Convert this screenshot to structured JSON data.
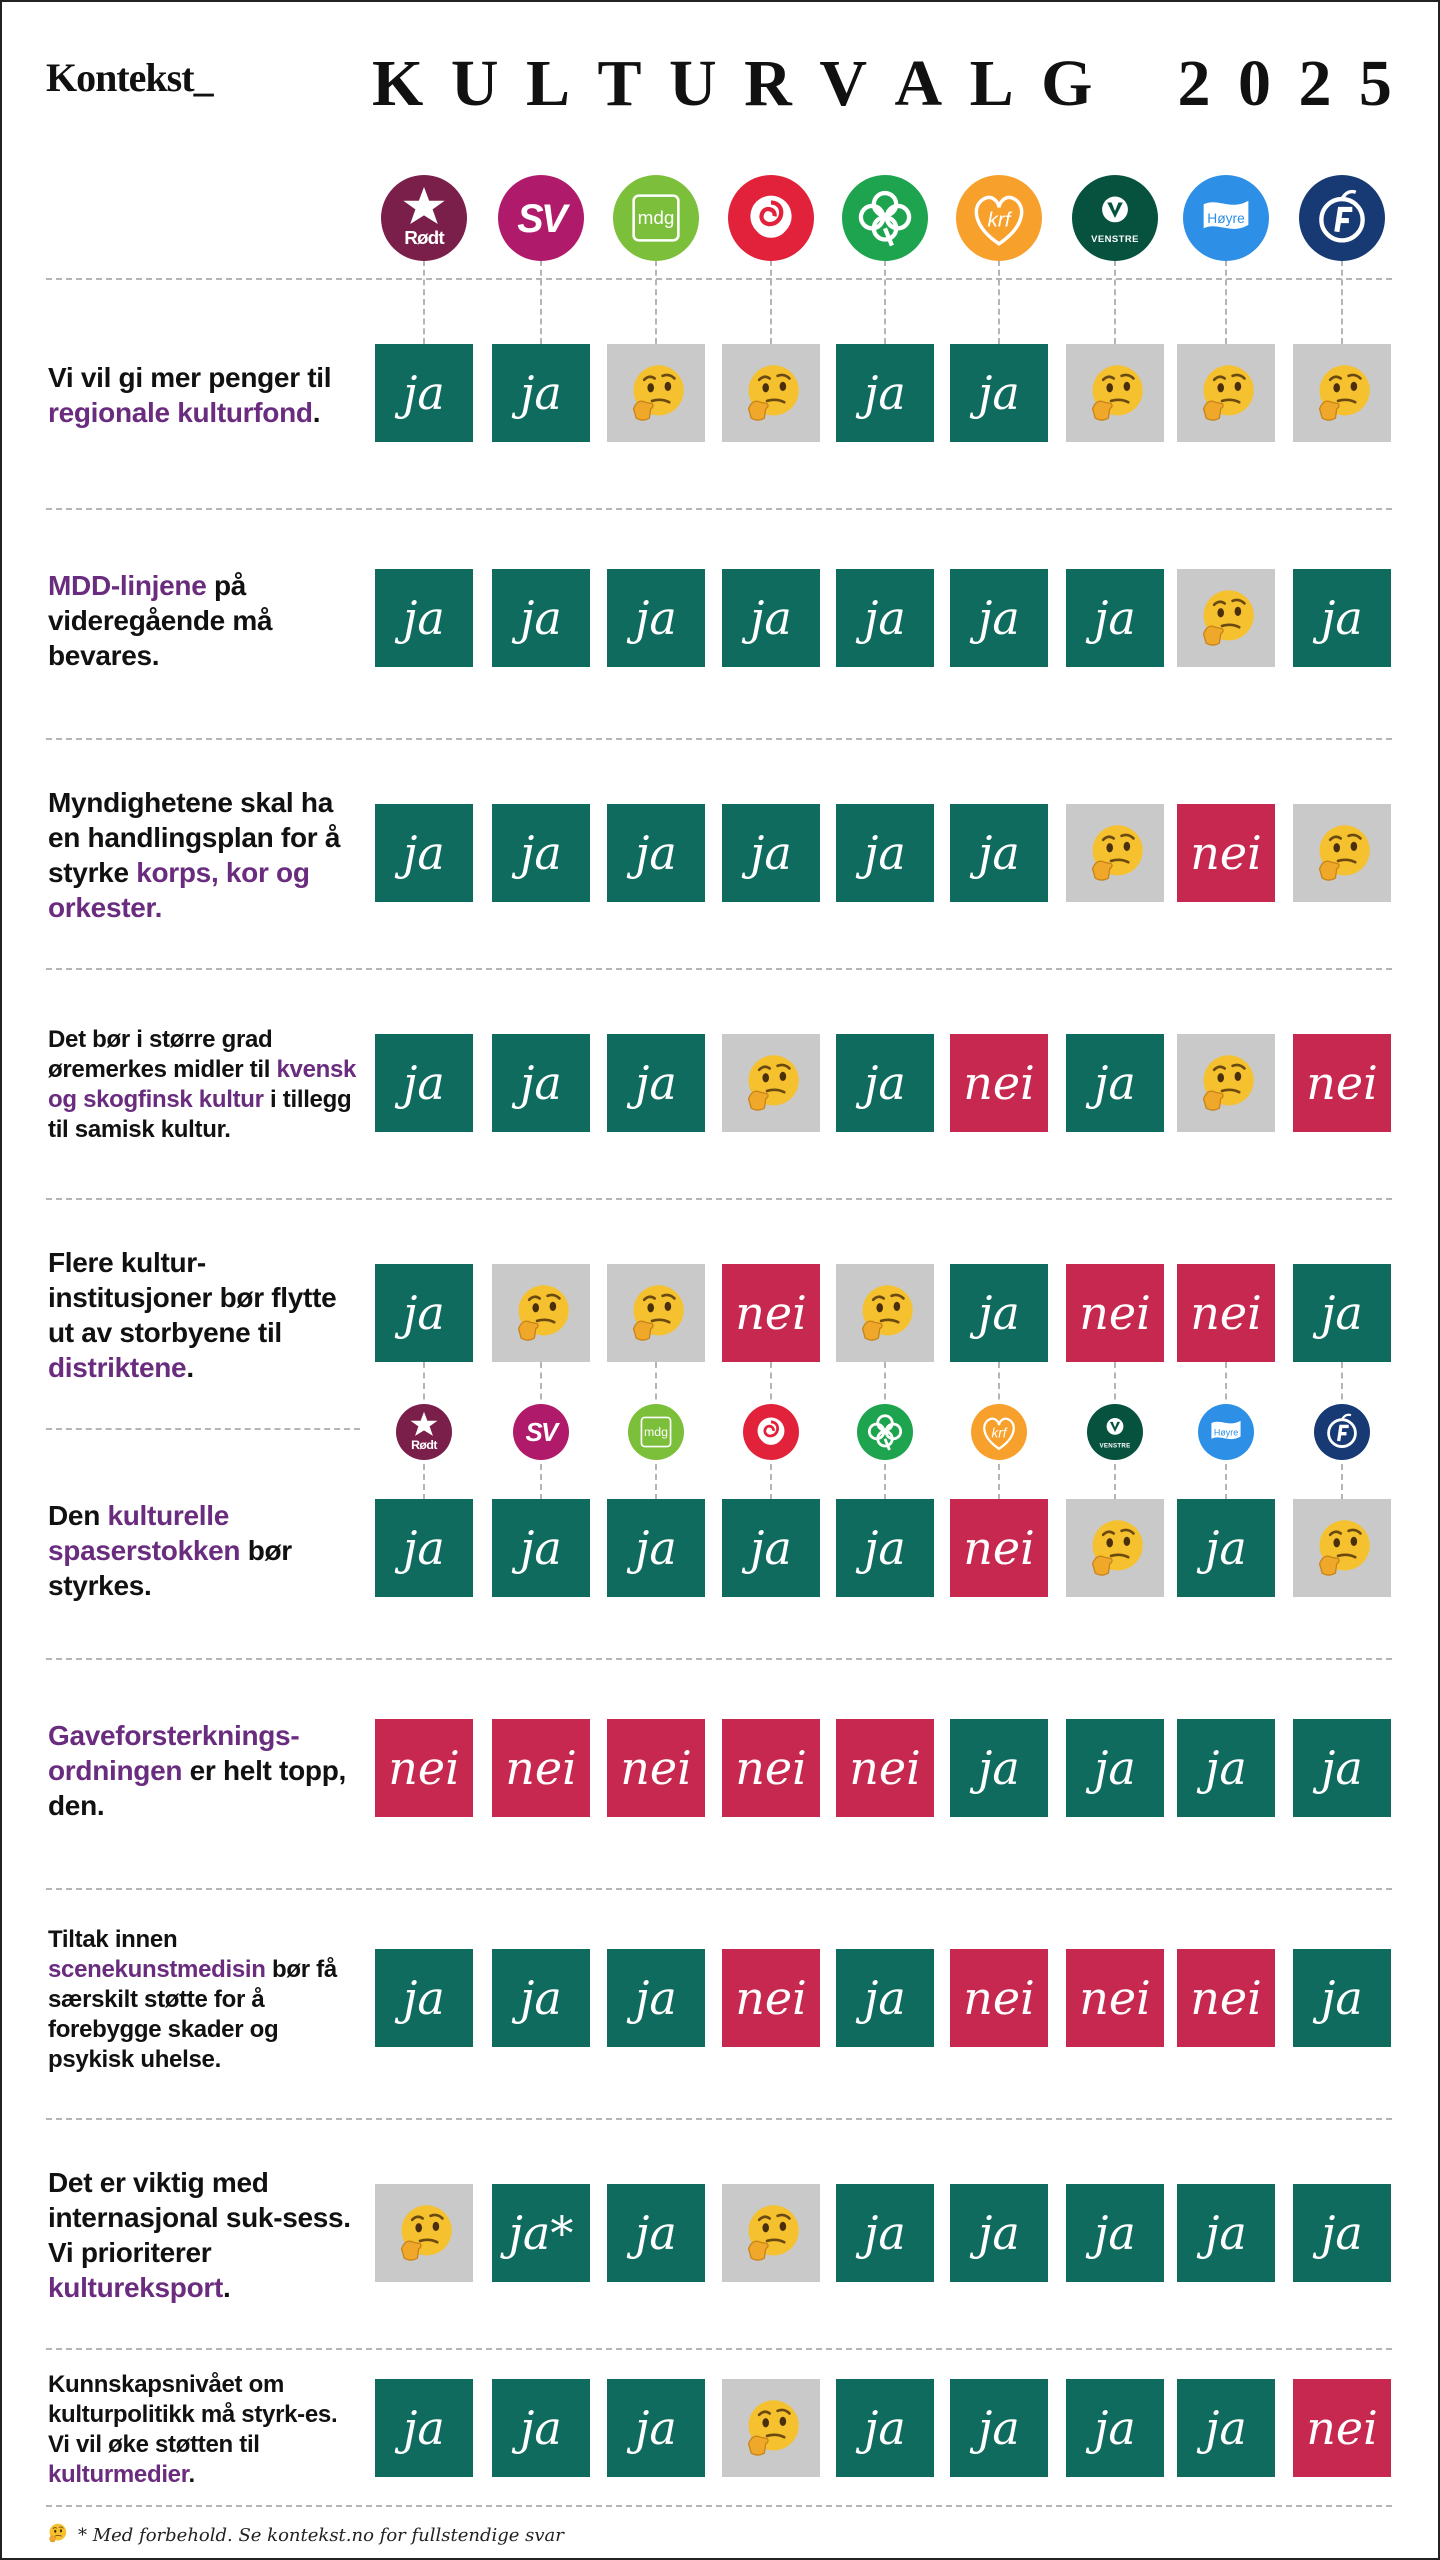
{
  "logo": "Kontekst_",
  "title": "KULTURVALG 2025",
  "colors": {
    "ja": "#0f6b5e",
    "nei": "#c7284f",
    "maybe": "#c9c9c9",
    "highlight": "#6a2c7e"
  },
  "answer_labels": {
    "ja": "ja",
    "nei": "nei",
    "ja_star": "ja*"
  },
  "parties": [
    {
      "id": "rodt",
      "label": "Rødt",
      "color": "#7a1f49"
    },
    {
      "id": "sv",
      "label": "SV",
      "color": "#b01a6a"
    },
    {
      "id": "mdg",
      "label": "mdg",
      "color": "#7cbf3b"
    },
    {
      "id": "ap",
      "label": "",
      "color": "#e1223a"
    },
    {
      "id": "sp",
      "label": "",
      "color": "#1ea34f"
    },
    {
      "id": "krf",
      "label": "krf",
      "color": "#f7a12c"
    },
    {
      "id": "venstre",
      "label": "VENSTRE",
      "color": "#06523f"
    },
    {
      "id": "hoyre",
      "label": "Høyre",
      "color": "#2d8fe6"
    },
    {
      "id": "frp",
      "label": "",
      "color": "#173a74"
    }
  ],
  "questions": [
    {
      "parts": [
        [
          "Vi vil gi mer penger til ",
          0
        ],
        [
          "regionale kulturfond",
          1
        ],
        [
          ".",
          0
        ]
      ],
      "answers": [
        "ja",
        "ja",
        "maybe",
        "maybe",
        "ja",
        "ja",
        "maybe",
        "maybe",
        "maybe"
      ]
    },
    {
      "parts": [
        [
          "MDD-linjene",
          1
        ],
        [
          " på videregående må bevares.",
          0
        ]
      ],
      "answers": [
        "ja",
        "ja",
        "ja",
        "ja",
        "ja",
        "ja",
        "ja",
        "maybe",
        "ja"
      ]
    },
    {
      "parts": [
        [
          "Myndighetene skal ha en handlingsplan for å styrke ",
          0
        ],
        [
          "korps, kor og orkester.",
          1
        ]
      ],
      "answers": [
        "ja",
        "ja",
        "ja",
        "ja",
        "ja",
        "ja",
        "maybe",
        "nei",
        "maybe"
      ]
    },
    {
      "parts": [
        [
          "Det bør i større grad øremerkes midler til ",
          0
        ],
        [
          "kvensk og skogfinsk kultur",
          1
        ],
        [
          " i tillegg til samisk kultur.",
          0
        ]
      ],
      "answers": [
        "ja",
        "ja",
        "ja",
        "maybe",
        "ja",
        "nei",
        "ja",
        "maybe",
        "nei"
      ]
    },
    {
      "parts": [
        [
          "Flere kultur-institusjoner bør flytte ut av storbyene til ",
          0
        ],
        [
          "distriktene",
          1
        ],
        [
          ".",
          0
        ]
      ],
      "answers": [
        "ja",
        "maybe",
        "maybe",
        "nei",
        "maybe",
        "ja",
        "nei",
        "nei",
        "ja"
      ]
    },
    {
      "parts": [
        [
          "Den ",
          0
        ],
        [
          "kulturelle spaserstokken",
          1
        ],
        [
          " bør styrkes.",
          0
        ]
      ],
      "answers": [
        "ja",
        "ja",
        "ja",
        "ja",
        "ja",
        "nei",
        "maybe",
        "ja",
        "maybe"
      ]
    },
    {
      "parts": [
        [
          "Gaveforsterknings-ordningen",
          1
        ],
        [
          " er helt topp, den.",
          0
        ]
      ],
      "answers": [
        "nei",
        "nei",
        "nei",
        "nei",
        "nei",
        "ja",
        "ja",
        "ja",
        "ja"
      ]
    },
    {
      "parts": [
        [
          "Tiltak innen ",
          0
        ],
        [
          "scenekunstmedisin",
          1
        ],
        [
          " bør få særskilt støtte for å forebygge skader og psykisk uhelse.",
          0
        ]
      ],
      "answers": [
        "ja",
        "ja",
        "ja",
        "nei",
        "ja",
        "nei",
        "nei",
        "nei",
        "ja"
      ]
    },
    {
      "parts": [
        [
          "Det er viktig med internasjonal suk-sess. Vi prioriterer ",
          0
        ],
        [
          "kultureksport",
          1
        ],
        [
          ".",
          0
        ]
      ],
      "answers": [
        "maybe",
        "ja_star",
        "ja",
        "maybe",
        "ja",
        "ja",
        "ja",
        "ja",
        "ja"
      ]
    },
    {
      "parts": [
        [
          "Kunnskapsnivået om kulturpolitikk må styrk-es. Vi vil øke støtten til ",
          0
        ],
        [
          "kulturmedier",
          1
        ],
        [
          ".",
          0
        ]
      ],
      "answers": [
        "ja",
        "ja",
        "ja",
        "maybe",
        "ja",
        "ja",
        "ja",
        "ja",
        "nei"
      ]
    }
  ],
  "footnote": "* Med forbehold. Se kontekst.no for fullstendige svar"
}
